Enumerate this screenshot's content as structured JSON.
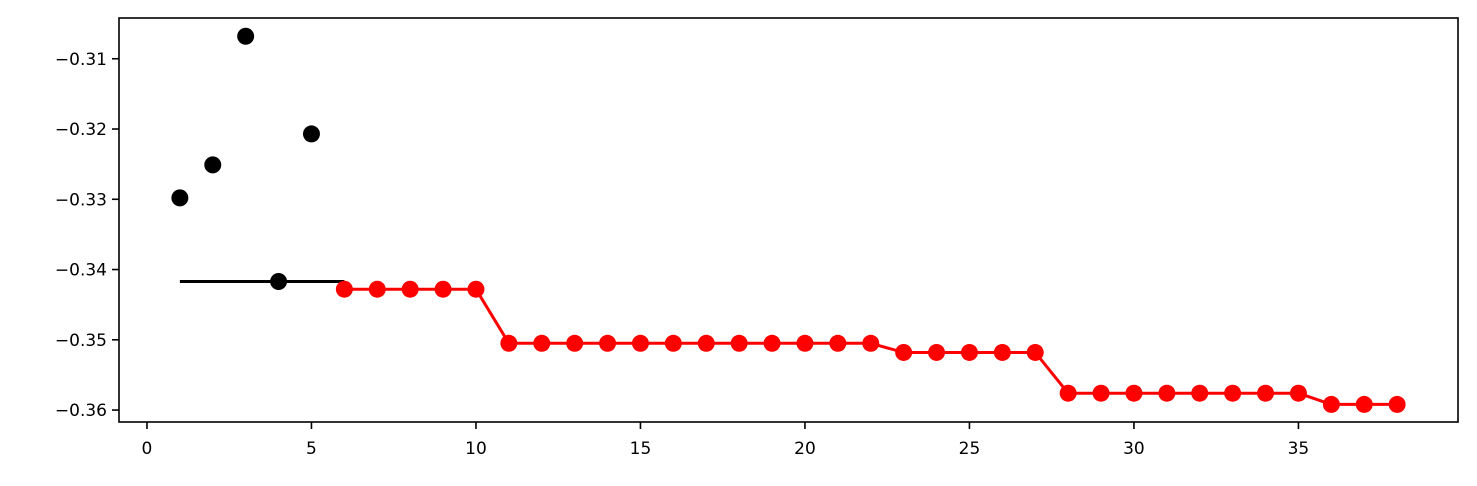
{
  "chart_data": {
    "type": "line",
    "title": "",
    "xlabel": "",
    "ylabel": "",
    "xlim": [
      -0.85,
      39.85
    ],
    "ylim": [
      -0.3617,
      -0.3042
    ],
    "grid": false,
    "x_ticks": [
      0,
      5,
      10,
      15,
      20,
      25,
      30,
      35
    ],
    "x_tick_labels": [
      "0",
      "5",
      "10",
      "15",
      "20",
      "25",
      "30",
      "35"
    ],
    "y_ticks": [
      -0.31,
      -0.32,
      -0.33,
      -0.34,
      -0.35,
      -0.36
    ],
    "y_tick_labels": [
      "−0.31",
      "−0.32",
      "−0.33",
      "−0.34",
      "−0.35",
      "−0.36"
    ],
    "series": [
      {
        "kind": "scatter",
        "color": "#000000",
        "x": [
          1,
          2,
          3,
          4,
          5
        ],
        "y": [
          -0.3298,
          -0.3251,
          -0.3068,
          -0.3417,
          -0.3207
        ]
      },
      {
        "kind": "line",
        "color": "#000000",
        "x": [
          1,
          6
        ],
        "y": [
          -0.3417,
          -0.3417
        ]
      },
      {
        "kind": "line-marker",
        "color": "#ff0000",
        "x": [
          6,
          7,
          8,
          9,
          10,
          11,
          12,
          13,
          14,
          15,
          16,
          17,
          18,
          19,
          20,
          21,
          22,
          23,
          24,
          25,
          26,
          27,
          28,
          29,
          30,
          31,
          32,
          33,
          34,
          35,
          36,
          37,
          38
        ],
        "y": [
          -0.3428,
          -0.3428,
          -0.3428,
          -0.3428,
          -0.3428,
          -0.3505,
          -0.3505,
          -0.3505,
          -0.3505,
          -0.3505,
          -0.3505,
          -0.3505,
          -0.3505,
          -0.3505,
          -0.3505,
          -0.3505,
          -0.3505,
          -0.3518,
          -0.3518,
          -0.3518,
          -0.3518,
          -0.3518,
          -0.3576,
          -0.3576,
          -0.3576,
          -0.3576,
          -0.3576,
          -0.3576,
          -0.3576,
          -0.3576,
          -0.3592,
          -0.3592,
          -0.3592
        ]
      }
    ]
  }
}
